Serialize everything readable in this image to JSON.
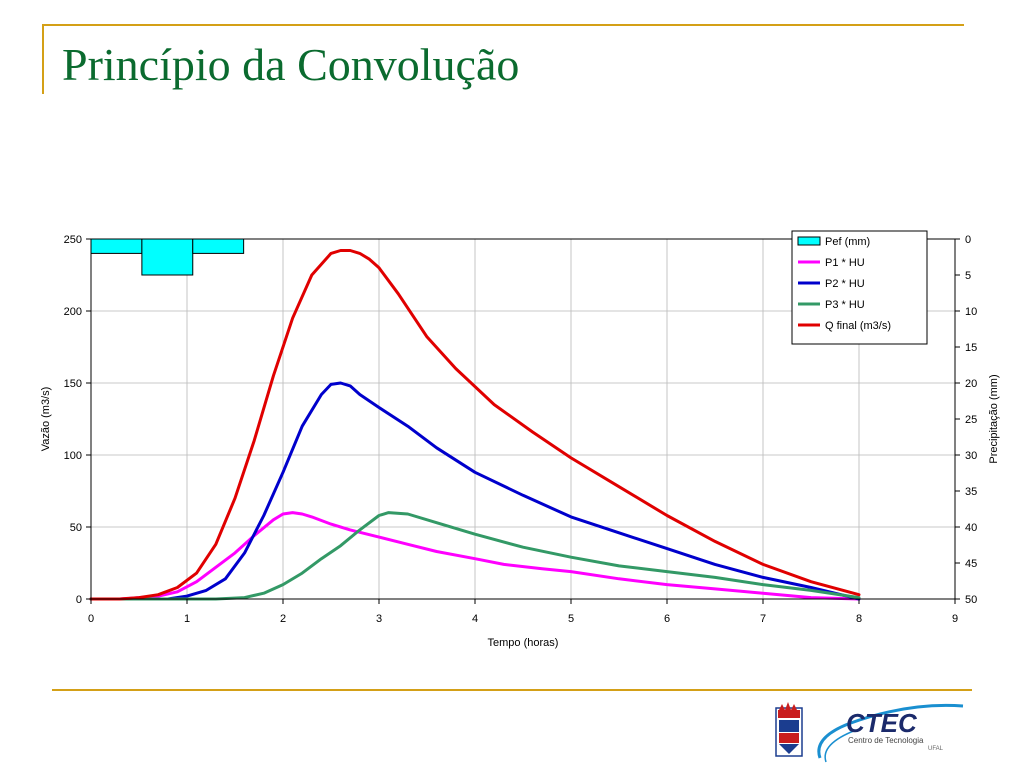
{
  "slide": {
    "title": "Princípio da Convolução"
  },
  "colors": {
    "title": "#0b6b2f",
    "rule": "#d4a017",
    "pef_fill": "#00ffff",
    "p1": "#ff00ff",
    "p2": "#0000cc",
    "p3": "#339966",
    "qfinal": "#e00000"
  },
  "chart_data": {
    "type": "line",
    "xlabel": "Tempo (horas)",
    "ylabel": "Vazão (m3/s)",
    "y2label": "Precipitação (mm)",
    "xlim": [
      0,
      9
    ],
    "ylim": [
      0,
      250
    ],
    "y2lim": [
      0,
      50
    ],
    "y2_inverted": true,
    "x_ticks": [
      "0",
      "1",
      "2",
      "3",
      "4",
      "5",
      "6",
      "7",
      "8",
      "9"
    ],
    "y_ticks": [
      "0",
      "50",
      "100",
      "150",
      "200",
      "250"
    ],
    "y2_ticks": [
      "0",
      "5",
      "10",
      "15",
      "20",
      "25",
      "30",
      "35",
      "40",
      "45",
      "50"
    ],
    "grid": true,
    "legend_position": "top-right",
    "precipitation": {
      "name": "Pef (mm)",
      "type": "bar",
      "bars": [
        {
          "x0": 0.0,
          "x1": 0.53,
          "value": 2
        },
        {
          "x0": 0.53,
          "x1": 1.06,
          "value": 5
        },
        {
          "x0": 1.06,
          "x1": 1.59,
          "value": 2
        }
      ]
    },
    "series": [
      {
        "name": "P1 * HU",
        "color": "#ff00ff",
        "x": [
          0,
          0.3,
          0.5,
          0.7,
          0.9,
          1.1,
          1.3,
          1.5,
          1.7,
          1.9,
          2.0,
          2.1,
          2.2,
          2.3,
          2.5,
          2.7,
          3.0,
          3.3,
          3.6,
          4.0,
          4.3,
          4.7,
          5.0,
          5.5,
          6.0,
          6.5,
          7.0,
          7.5,
          8.0
        ],
        "values": [
          0,
          0,
          1,
          2,
          5,
          12,
          22,
          32,
          44,
          55,
          59,
          60,
          59,
          57,
          52,
          48,
          43,
          38,
          33,
          28,
          24,
          21,
          19,
          14,
          10,
          7,
          4,
          1,
          0
        ]
      },
      {
        "name": "P2 * HU",
        "color": "#0000cc",
        "x": [
          0,
          0.8,
          1.0,
          1.2,
          1.4,
          1.6,
          1.8,
          2.0,
          2.2,
          2.4,
          2.5,
          2.6,
          2.7,
          2.8,
          3.0,
          3.3,
          3.6,
          4.0,
          4.5,
          5.0,
          5.5,
          6.0,
          6.5,
          7.0,
          7.5,
          8.0
        ],
        "values": [
          0,
          0,
          2,
          6,
          14,
          32,
          58,
          88,
          120,
          142,
          149,
          150,
          148,
          142,
          133,
          120,
          105,
          88,
          72,
          57,
          46,
          35,
          24,
          15,
          8,
          0
        ]
      },
      {
        "name": "P3 * HU",
        "color": "#339966",
        "x": [
          0,
          1.3,
          1.6,
          1.8,
          2.0,
          2.2,
          2.4,
          2.6,
          2.8,
          3.0,
          3.1,
          3.3,
          3.6,
          4.0,
          4.5,
          5.0,
          5.5,
          6.0,
          6.5,
          7.0,
          7.5,
          8.0
        ],
        "values": [
          0,
          0,
          1,
          4,
          10,
          18,
          28,
          37,
          48,
          58,
          60,
          59,
          53,
          45,
          36,
          29,
          23,
          19,
          15,
          10,
          6,
          1
        ]
      },
      {
        "name": "Q final  (m3/s)",
        "color": "#e00000",
        "x": [
          0,
          0.3,
          0.5,
          0.7,
          0.9,
          1.1,
          1.3,
          1.5,
          1.7,
          1.9,
          2.1,
          2.3,
          2.5,
          2.6,
          2.7,
          2.8,
          2.9,
          3.0,
          3.2,
          3.5,
          3.8,
          4.2,
          4.6,
          5.0,
          5.5,
          6.0,
          6.5,
          7.0,
          7.5,
          8.0
        ],
        "values": [
          0,
          0,
          1,
          3,
          8,
          18,
          38,
          70,
          110,
          155,
          195,
          225,
          240,
          242,
          242,
          240,
          236,
          230,
          212,
          182,
          160,
          135,
          116,
          98,
          78,
          58,
          40,
          24,
          12,
          3
        ]
      }
    ]
  },
  "logos": {
    "ctec_text": "CTEC",
    "ctec_subtitle": "Centro de Tecnologia",
    "ctec_ufal": "UFAL"
  }
}
